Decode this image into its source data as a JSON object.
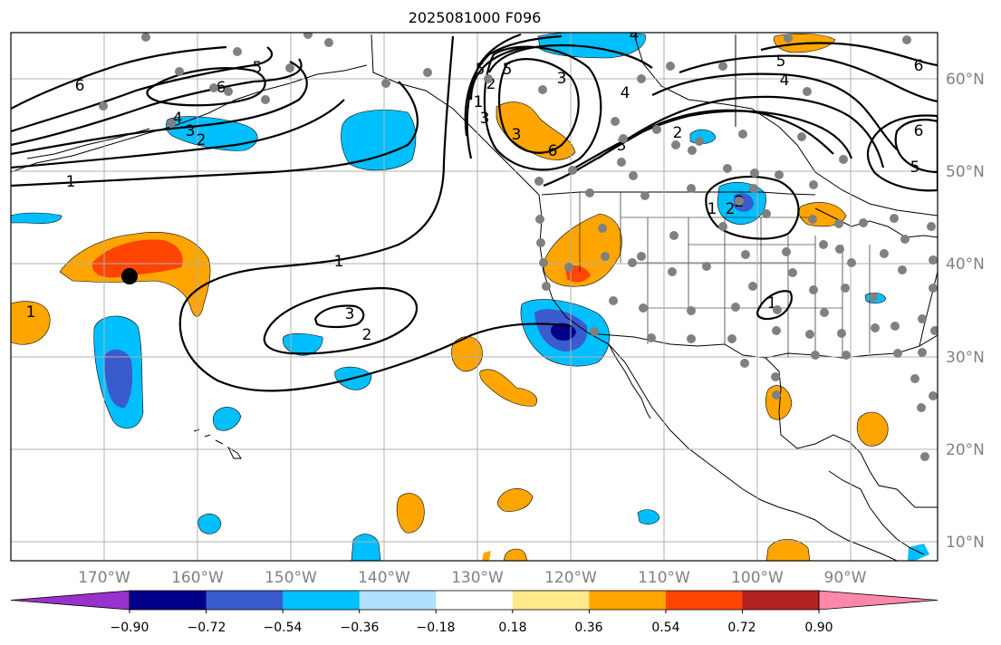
{
  "title": "2025081000 F096",
  "lat_labels": [
    "60°N",
    "50°N",
    "40°N",
    "30°N",
    "20°N",
    "10°N"
  ],
  "lon_labels": [
    "170°W",
    "160°W",
    "150°W",
    "140°W",
    "130°W",
    "120°W",
    "110°W",
    "100°W",
    "90°W"
  ],
  "colorbar": {
    "tick_labels": [
      "−0.90",
      "−0.72",
      "−0.54",
      "−0.36",
      "−0.18",
      "0.18",
      "0.36",
      "0.54",
      "0.72",
      "0.90"
    ],
    "colors": [
      "#9932cc",
      "#00008b",
      "#3a5bcd",
      "#00bfff",
      "#b0e0ff",
      "#ffffff",
      "#ffe98a",
      "#ffa500",
      "#ff4500",
      "#b22222",
      "#ff88aa"
    ]
  },
  "contour_labels": [
    "6",
    "5",
    "4",
    "3",
    "2",
    "1",
    "1",
    "2",
    "3",
    "1",
    "2",
    "3",
    "4",
    "5",
    "6",
    "5",
    "4",
    "2",
    "6",
    "5",
    "4",
    "3",
    "2",
    "1",
    "6",
    "3",
    "2",
    "1",
    "5",
    "6",
    "1",
    "3"
  ],
  "colors": {
    "land_line": "#000000",
    "grid": "#b0b0b0",
    "station": "#808080",
    "marker": "#000000"
  }
}
